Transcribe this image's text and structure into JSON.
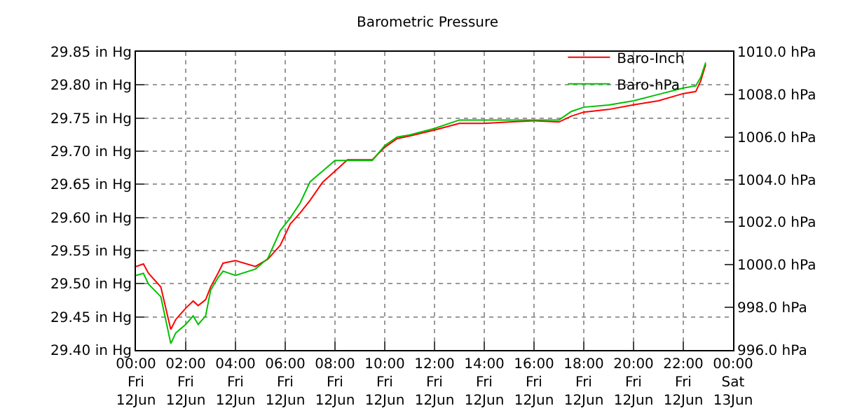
{
  "chart_data": {
    "type": "line",
    "title": "Barometric Pressure",
    "x": [
      "--06-12T00:00",
      "--06-12T00:18",
      "--06-12T00:30",
      "--06-12T01:00",
      "--06-12T01:12",
      "--06-12T01:24",
      "--06-12T01:36",
      "--06-12T02:00",
      "--06-12T02:18",
      "--06-12T02:30",
      "--06-12T02:48",
      "--06-12T03:00",
      "--06-12T03:18",
      "--06-12T03:30",
      "--06-12T04:00",
      "--06-12T04:48",
      "--06-12T05:18",
      "--06-12T05:48",
      "--06-12T06:12",
      "--06-12T06:36",
      "--06-12T07:00",
      "--06-12T07:30",
      "--06-12T08:00",
      "--06-12T08:30",
      "--06-12T09:30",
      "--06-12T10:00",
      "--06-12T10:30",
      "--06-12T11:00",
      "--06-12T12:00",
      "--06-12T13:00",
      "--06-12T14:00",
      "--06-12T15:00",
      "--06-12T16:00",
      "--06-12T17:00",
      "--06-12T17:30",
      "--06-12T18:00",
      "--06-12T19:00",
      "--06-12T20:00",
      "--06-12T21:00",
      "--06-12T22:00",
      "--06-12T22:30",
      "--06-12T22:42",
      "--06-12T22:54"
    ],
    "series": [
      {
        "name": "Baro-Inch",
        "color": "#ff0000",
        "values": [
          29.526,
          29.53,
          29.516,
          29.495,
          29.463,
          29.431,
          29.446,
          29.463,
          29.474,
          29.467,
          29.476,
          29.495,
          29.516,
          29.531,
          29.535,
          29.526,
          29.537,
          29.558,
          29.59,
          29.607,
          29.626,
          29.653,
          29.67,
          29.687,
          29.687,
          29.706,
          29.719,
          29.723,
          29.732,
          29.742,
          29.742,
          29.744,
          29.746,
          29.744,
          29.753,
          29.759,
          29.763,
          29.77,
          29.776,
          29.787,
          29.79,
          29.806,
          29.831
        ]
      },
      {
        "name": "Baro-hPa",
        "color": "#00c000",
        "axis": "y2",
        "values": [
          999.5,
          999.6,
          999.1,
          998.5,
          997.4,
          996.3,
          996.8,
          997.2,
          997.6,
          997.2,
          997.6,
          998.8,
          999.4,
          999.7,
          999.5,
          999.8,
          1000.3,
          1001.6,
          1002.2,
          1002.9,
          1003.9,
          1004.4,
          1004.9,
          1004.9,
          1004.9,
          1005.6,
          1006.0,
          1006.1,
          1006.4,
          1006.8,
          1006.8,
          1006.8,
          1006.8,
          1006.8,
          1007.2,
          1007.4,
          1007.5,
          1007.7,
          1008.0,
          1008.3,
          1008.4,
          1008.8,
          1009.5
        ]
      }
    ],
    "xlim": [
      "--06-12T00:00",
      "--06-13T00:00"
    ],
    "xticks": [
      {
        "value": "--06-12T00:00",
        "label": "00:00\nFri\n12Jun"
      },
      {
        "value": "--06-12T02:00",
        "label": "02:00\nFri\n12Jun"
      },
      {
        "value": "--06-12T04:00",
        "label": "04:00\nFri\n12Jun"
      },
      {
        "value": "--06-12T06:00",
        "label": "06:00\nFri\n12Jun"
      },
      {
        "value": "--06-12T08:00",
        "label": "08:00\nFri\n12Jun"
      },
      {
        "value": "--06-12T10:00",
        "label": "10:00\nFri\n12Jun"
      },
      {
        "value": "--06-12T12:00",
        "label": "12:00\nFri\n12Jun"
      },
      {
        "value": "--06-12T14:00",
        "label": "14:00\nFri\n12Jun"
      },
      {
        "value": "--06-12T16:00",
        "label": "16:00\nFri\n12Jun"
      },
      {
        "value": "--06-12T18:00",
        "label": "18:00\nFri\n12Jun"
      },
      {
        "value": "--06-12T20:00",
        "label": "20:00\nFri\n12Jun"
      },
      {
        "value": "--06-12T22:00",
        "label": "22:00\nFri\n12Jun"
      },
      {
        "value": "--06-13T00:00",
        "label": "00:00\nSat\n13Jun"
      }
    ],
    "ylim": [
      29.4,
      29.85
    ],
    "yticks": [
      {
        "value": 29.4,
        "label": "29.40 in Hg"
      },
      {
        "value": 29.45,
        "label": "29.45 in Hg"
      },
      {
        "value": 29.5,
        "label": "29.50 in Hg"
      },
      {
        "value": 29.55,
        "label": "29.55 in Hg"
      },
      {
        "value": 29.6,
        "label": "29.60 in Hg"
      },
      {
        "value": 29.65,
        "label": "29.65 in Hg"
      },
      {
        "value": 29.7,
        "label": "29.70 in Hg"
      },
      {
        "value": 29.75,
        "label": "29.75 in Hg"
      },
      {
        "value": 29.8,
        "label": "29.80 in Hg"
      },
      {
        "value": 29.85,
        "label": "29.85 in Hg"
      }
    ],
    "y2lim": [
      996,
      1010
    ],
    "y2ticks": [
      {
        "value": 996,
        "label": "996.0 hPa"
      },
      {
        "value": 998,
        "label": "998.0 hPa"
      },
      {
        "value": 1000,
        "label": "1000.0 hPa"
      },
      {
        "value": 1002,
        "label": "1002.0 hPa"
      },
      {
        "value": 1004,
        "label": "1004.0 hPa"
      },
      {
        "value": 1006,
        "label": "1006.0 hPa"
      },
      {
        "value": 1008,
        "label": "1008.0 hPa"
      },
      {
        "value": 1010,
        "label": "1010.0 hPa"
      }
    ],
    "grid": true,
    "legend": "top right",
    "marker": "none",
    "line_style": "solid"
  }
}
